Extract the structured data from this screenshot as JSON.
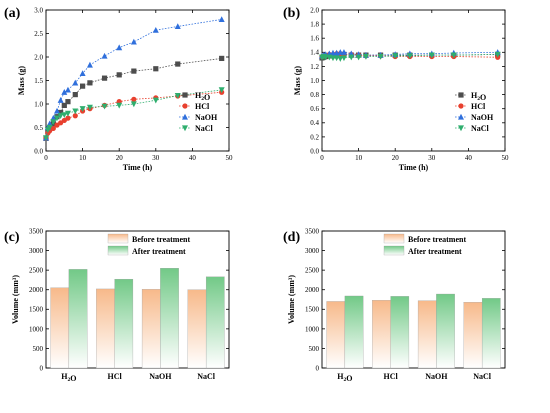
{
  "colors": {
    "H2O": "#4d4d4d",
    "HCl": "#e8402e",
    "NaOH": "#2f6fdc",
    "NaCl": "#2fae6e",
    "before_top": "#f7b98a",
    "after_top": "#72c987"
  },
  "chart_data": [
    {
      "type": "line",
      "panel": "(a)",
      "xlabel": "Time (h)",
      "ylabel": "Mass (g)",
      "xlim": [
        0,
        50
      ],
      "ylim": [
        0,
        3.0
      ],
      "xticks": [
        "0",
        "10",
        "20",
        "30",
        "40",
        "50"
      ],
      "yticks": [
        "0.0",
        "0.5",
        "1.0",
        "1.5",
        "2.0",
        "2.5",
        "3.0"
      ],
      "legend_position": "bottom-right",
      "x": [
        0,
        0.5,
        1,
        2,
        3,
        4,
        5,
        6,
        8,
        10,
        12,
        16,
        20,
        24,
        30,
        36,
        48
      ],
      "series": [
        {
          "name": "H2O",
          "marker": "square",
          "color_key": "H2O",
          "values": [
            0.27,
            0.42,
            0.48,
            0.58,
            0.73,
            0.82,
            0.97,
            1.05,
            1.2,
            1.38,
            1.45,
            1.55,
            1.62,
            1.7,
            1.75,
            1.85,
            1.97
          ]
        },
        {
          "name": "HCl",
          "marker": "circle",
          "color_key": "HCl",
          "values": [
            0.27,
            0.38,
            0.43,
            0.48,
            0.55,
            0.6,
            0.65,
            0.7,
            0.75,
            0.85,
            0.9,
            0.97,
            1.05,
            1.1,
            1.13,
            1.17,
            1.25
          ]
        },
        {
          "name": "NaOH",
          "marker": "triangle-up",
          "color_key": "NaOH",
          "values": [
            0.28,
            0.5,
            0.58,
            0.7,
            0.85,
            1.08,
            1.25,
            1.3,
            1.45,
            1.65,
            1.83,
            2.02,
            2.2,
            2.32,
            2.57,
            2.65,
            2.8
          ]
        },
        {
          "name": "NaCl",
          "marker": "triangle-down",
          "color_key": "NaCl",
          "values": [
            0.28,
            0.45,
            0.5,
            0.62,
            0.7,
            0.75,
            0.77,
            0.8,
            0.85,
            0.9,
            0.93,
            0.95,
            0.97,
            1.0,
            1.08,
            1.18,
            1.3
          ]
        }
      ]
    },
    {
      "type": "line",
      "panel": "(b)",
      "xlabel": "Time (h)",
      "ylabel": "Mass (g)",
      "xlim": [
        0,
        50
      ],
      "ylim": [
        0,
        2.0
      ],
      "xticks": [
        "0",
        "10",
        "20",
        "30",
        "40",
        "50"
      ],
      "yticks": [
        "0.0",
        "0.2",
        "0.4",
        "0.6",
        "0.8",
        "1.0",
        "1.2",
        "1.4",
        "1.6",
        "1.8",
        "2.0"
      ],
      "legend_position": "bottom-right",
      "x": [
        0,
        0.5,
        1,
        2,
        3,
        4,
        5,
        6,
        8,
        10,
        12,
        16,
        20,
        24,
        30,
        36,
        48
      ],
      "series": [
        {
          "name": "H2O",
          "marker": "square",
          "color_key": "H2O",
          "values": [
            1.32,
            1.33,
            1.34,
            1.35,
            1.35,
            1.36,
            1.36,
            1.37,
            1.36,
            1.36,
            1.36,
            1.36,
            1.36,
            1.36,
            1.36,
            1.36,
            1.37
          ]
        },
        {
          "name": "HCl",
          "marker": "circle",
          "color_key": "HCl",
          "values": [
            1.34,
            1.35,
            1.36,
            1.37,
            1.37,
            1.38,
            1.38,
            1.37,
            1.37,
            1.36,
            1.35,
            1.35,
            1.34,
            1.34,
            1.34,
            1.34,
            1.33
          ]
        },
        {
          "name": "NaOH",
          "marker": "triangle-up",
          "color_key": "NaOH",
          "values": [
            1.35,
            1.36,
            1.37,
            1.38,
            1.39,
            1.39,
            1.4,
            1.4,
            1.38,
            1.37,
            1.36,
            1.36,
            1.37,
            1.38,
            1.38,
            1.39,
            1.4
          ]
        },
        {
          "name": "NaCl",
          "marker": "triangle-down",
          "color_key": "NaCl",
          "values": [
            1.33,
            1.34,
            1.33,
            1.33,
            1.32,
            1.32,
            1.31,
            1.32,
            1.33,
            1.33,
            1.34,
            1.34,
            1.35,
            1.35,
            1.36,
            1.36,
            1.37
          ]
        }
      ]
    },
    {
      "type": "bar",
      "panel": "(c)",
      "ylabel": "Volume (mm³)",
      "ylim": [
        0,
        3500
      ],
      "yticks": [
        "0",
        "500",
        "1000",
        "1500",
        "2000",
        "2500",
        "3000",
        "3500"
      ],
      "categories": [
        "H2O",
        "HCl",
        "NaOH",
        "NaCl"
      ],
      "legend_position": "top-center",
      "series": [
        {
          "name": "Before treatment",
          "color_key": "before_top",
          "values": [
            2050,
            2020,
            2010,
            2000
          ]
        },
        {
          "name": "After treatment",
          "color_key": "after_top",
          "values": [
            2520,
            2270,
            2550,
            2330
          ]
        }
      ]
    },
    {
      "type": "bar",
      "panel": "(d)",
      "ylabel": "Volume (mm³)",
      "ylim": [
        0,
        3500
      ],
      "yticks": [
        "0",
        "500",
        "1000",
        "1500",
        "2000",
        "2500",
        "3000",
        "3500"
      ],
      "categories": [
        "H2O",
        "HCl",
        "NaOH",
        "NaCl"
      ],
      "legend_position": "top-center",
      "series": [
        {
          "name": "Before treatment",
          "color_key": "before_top",
          "values": [
            1700,
            1730,
            1720,
            1680
          ]
        },
        {
          "name": "After treatment",
          "color_key": "after_top",
          "values": [
            1840,
            1830,
            1890,
            1780
          ]
        }
      ]
    }
  ]
}
